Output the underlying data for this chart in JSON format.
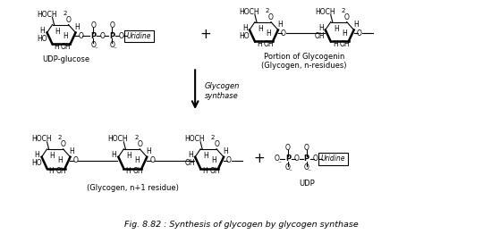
{
  "title": "Fig. 8.82 : Synthesis of glycogen by glycogen synthase",
  "bg_color": "#ffffff",
  "fig_width": 5.4,
  "fig_height": 2.62,
  "dpi": 100,
  "label_udp_glucose": "UDP-glucose",
  "label_glycogen_synthase": "Glycogen\nsynthase",
  "label_portion": "Portion of Glycogenin\n(Glycogen, n-residues)",
  "label_product": "(Glycogen, n+1 residue)",
  "label_udp": "UDP",
  "label_uridine": "Uridine",
  "label_uridine2": "Uridine"
}
